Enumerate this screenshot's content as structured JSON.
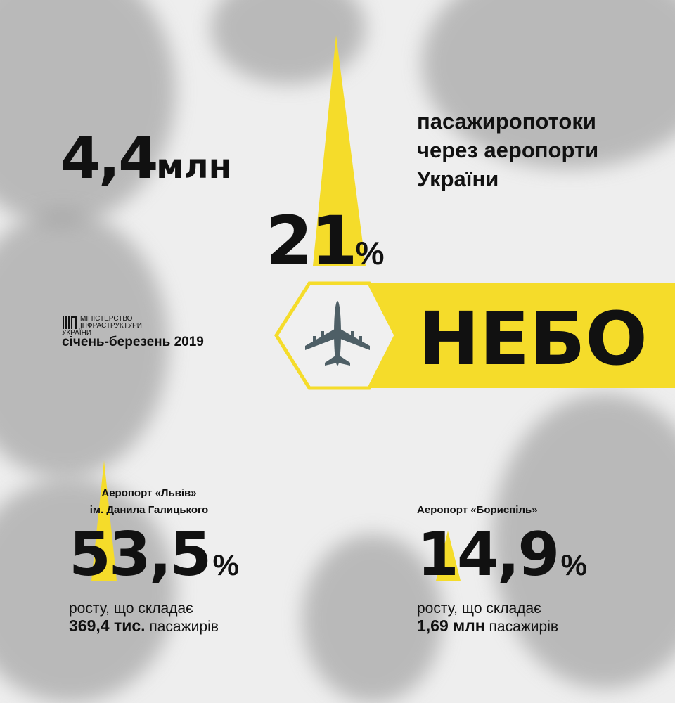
{
  "colors": {
    "accent": "#f5dc2a",
    "text": "#111111",
    "background": "#eeeeee"
  },
  "headline": {
    "value": "4,4",
    "unit": "млн"
  },
  "subtitle_lines": [
    "пасажиропотоки",
    "через аеропорти",
    "України"
  ],
  "growth": {
    "value": "21",
    "unit": "%"
  },
  "banner": {
    "icon": "airplane-icon",
    "label": "НЕБО"
  },
  "ministry": {
    "line1": "МІНІСТЕРСТВО",
    "line2": "ІНФРАСТРУКТУРИ УКРАЇНИ",
    "period": "січень-березень 2019"
  },
  "airports": [
    {
      "name_line1": "Аеропорт «Львів»",
      "name_line2": "ім. Данила Галицького",
      "value": "53,5",
      "unit": "%",
      "growth_text": "росту, що складає",
      "amount": "369,4 тис.",
      "amount_suffix": "пасажирів"
    },
    {
      "name_line1": "Аеропорт «Бориспіль»",
      "name_line2": "",
      "value": "14,9",
      "unit": "%",
      "growth_text": "росту, що складає",
      "amount": "1,69 млн",
      "amount_suffix": "пасажирів"
    }
  ]
}
